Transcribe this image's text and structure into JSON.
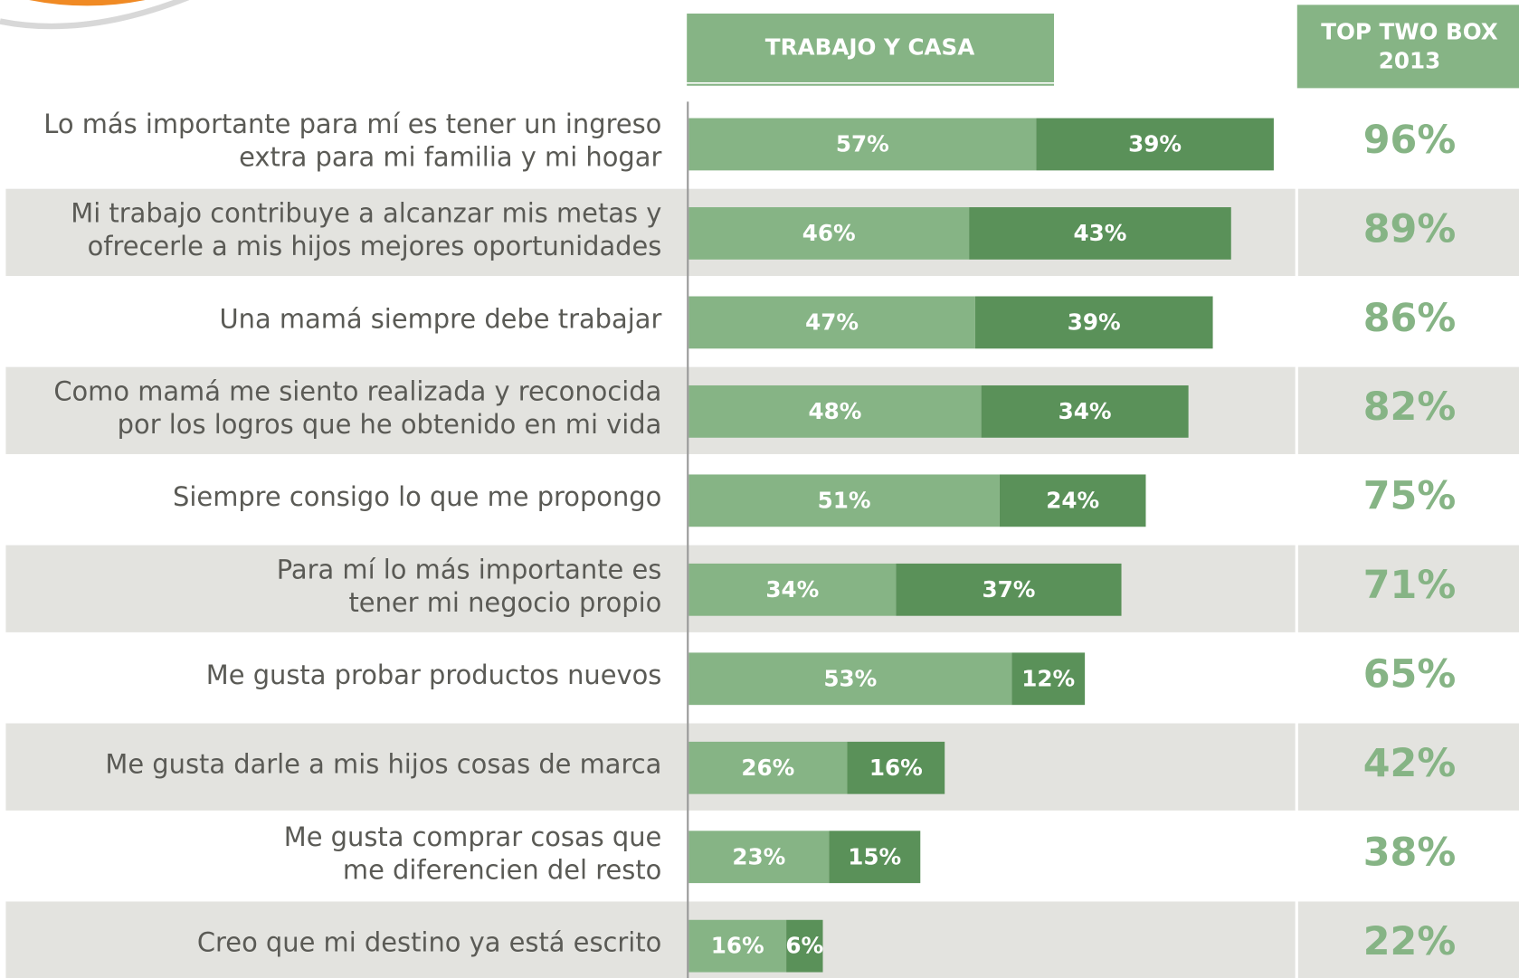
{
  "chart_data": {
    "type": "stacked-bar",
    "header": "TRABAJO Y CASA",
    "categories": [
      [
        "Lo más importante para mí es tener un ingreso",
        "extra para mi familia y mi hogar"
      ],
      [
        "Mi trabajo contribuye a alcanzar mis metas y",
        "ofrecerle a mis hijos mejores oportunidades"
      ],
      [
        "Una mamá siempre debe trabajar"
      ],
      [
        "Como mamá me siento realizada y reconocida",
        "por los logros que he obtenido en mi vida"
      ],
      [
        "Siempre consigo lo que me propongo"
      ],
      [
        "Para mí lo más importante es",
        "tener mi negocio propio"
      ],
      [
        "Me gusta probar productos nuevos"
      ],
      [
        "Me gusta darle a mis hijos cosas de marca"
      ],
      [
        "Me gusta comprar cosas que",
        "me diferencien del resto"
      ],
      [
        "Creo que mi destino ya está escrito"
      ]
    ],
    "series": [
      {
        "color": "#86b485",
        "values": [
          57,
          46,
          47,
          48,
          51,
          34,
          53,
          26,
          23,
          16
        ],
        "value_labels": [
          "57%",
          "46%",
          "47%",
          "48%",
          "51%",
          "34%",
          "53%",
          "26%",
          "23%",
          "16%"
        ]
      },
      {
        "color": "#5a9159",
        "values": [
          39,
          43,
          39,
          34,
          24,
          37,
          12,
          16,
          15,
          6
        ],
        "value_labels": [
          "39%",
          "43%",
          "39%",
          "34%",
          "24%",
          "37%",
          "12%",
          "16%",
          "15%",
          "6%"
        ]
      }
    ],
    "totals": {
      "title": [
        "TOP TWO BOX",
        "2013"
      ],
      "color": "#86b485",
      "values": [
        96,
        89,
        86,
        82,
        75,
        71,
        65,
        42,
        38,
        22
      ],
      "value_labels": [
        "96%",
        "89%",
        "86%",
        "82%",
        "75%",
        "71%",
        "65%",
        "42%",
        "38%",
        "22%"
      ]
    }
  }
}
